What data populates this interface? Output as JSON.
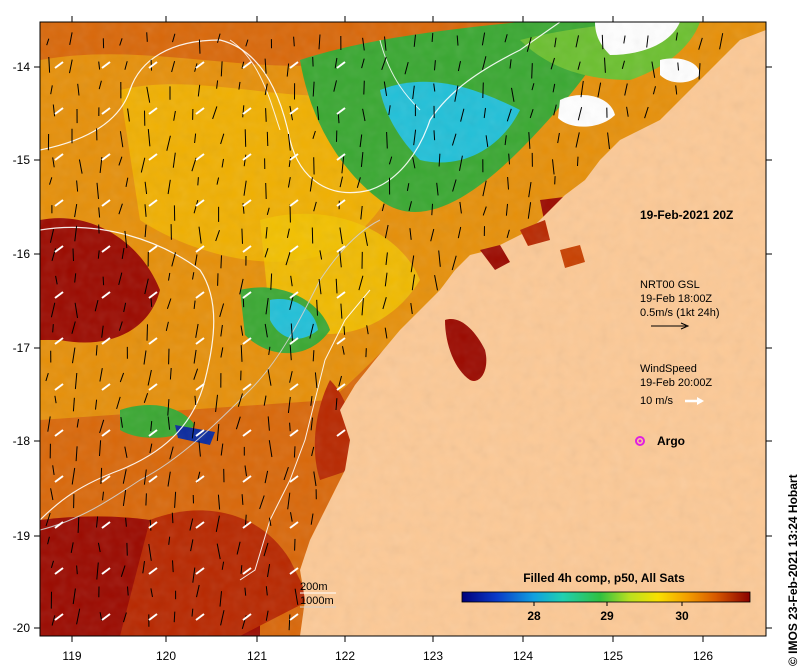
{
  "map": {
    "x_ticks": [
      "119",
      "120",
      "121",
      "122",
      "123",
      "124",
      "125",
      "126"
    ],
    "y_ticks": [
      "-14",
      "-15",
      "-16",
      "-17",
      "-18",
      "-19",
      "-20"
    ],
    "timestamp_label": "19-Feb-2021 20Z",
    "current_label_1": "NRT00 GSL",
    "current_label_2": "19-Feb 18:00Z",
    "current_label_3": "0.5m/s (1kt 24h)",
    "wind_label_1": "WindSpeed",
    "wind_label_2": "19-Feb 20:00Z",
    "wind_label_3": "10 m/s",
    "argo_label": "Argo",
    "contour_label_1": "200m",
    "contour_label_2": "1000m",
    "colorbar_title": "Filled 4h comp, p50, All Sats",
    "colorbar_ticks": [
      "28",
      "29",
      "30"
    ],
    "credit": "© IMOS 23-Feb-2021 13:24 Hobart",
    "colors": {
      "land": "#fcc996",
      "sst_hot": "#9b0a00",
      "sst_warm": "#d9680a",
      "sst_mid": "#f2b800",
      "sst_green": "#3aa832",
      "sst_cyan": "#22c0d8",
      "sst_blue": "#0a2a9e",
      "argo": "#e020e0"
    }
  }
}
